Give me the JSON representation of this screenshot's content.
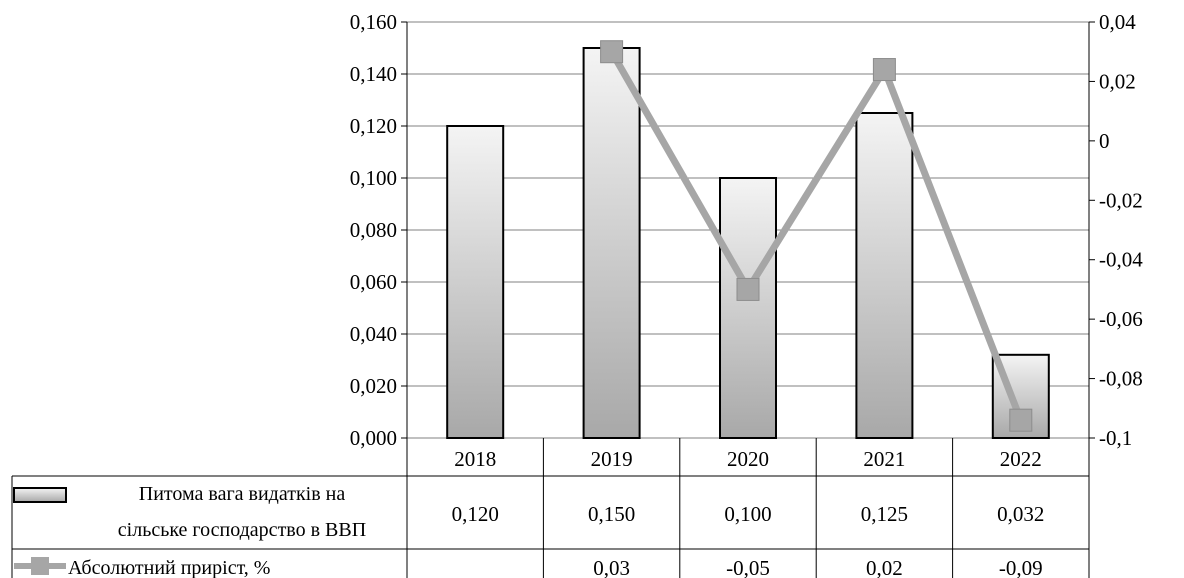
{
  "chart_data": {
    "type": "bar",
    "categories": [
      "2018",
      "2019",
      "2020",
      "2021",
      "2022"
    ],
    "series": [
      {
        "name": "Питома вага видатків на сільське господарство в ВВП",
        "name_lines": [
          "Питома вага видатків на",
          "сільське господарство в ВВП"
        ],
        "chart_type": "bar",
        "axis": "left",
        "values": [
          0.12,
          0.15,
          0.1,
          0.125,
          0.032
        ],
        "labels": [
          "0,120",
          "0,150",
          "0,100",
          "0,125",
          "0,032"
        ]
      },
      {
        "name": "Абсолютний приріст, %",
        "chart_type": "line",
        "axis": "right",
        "values": [
          null,
          0.03,
          -0.05,
          0.024,
          -0.094
        ],
        "labels": [
          "",
          "0,03",
          "-0,05",
          "0,02",
          "-0,09"
        ]
      }
    ],
    "y_left": {
      "range": [
        0,
        0.16
      ],
      "ticks": [
        0,
        0.02,
        0.04,
        0.06,
        0.08,
        0.1,
        0.12,
        0.14,
        0.16
      ],
      "tick_labels": [
        "0,000",
        "0,020",
        "0,040",
        "0,060",
        "0,080",
        "0,100",
        "0,120",
        "0,140",
        "0,160"
      ]
    },
    "y_right": {
      "range": [
        -0.1,
        0.04
      ],
      "ticks": [
        -0.1,
        -0.08,
        -0.06,
        -0.04,
        -0.02,
        0,
        0.02,
        0.04
      ],
      "tick_labels": [
        "-0,1",
        "-0,08",
        "-0,06",
        "-0,04",
        "-0,02",
        "0",
        "0,02",
        "0,04"
      ]
    },
    "grid": true,
    "legend": "data-table",
    "colors": {
      "bar_top": "#f4f4f4",
      "bar_bottom": "#a8a8a8",
      "bar_border": "#000000",
      "line": "#a6a6a6",
      "marker": "#a6a6a6",
      "grid": "#808080"
    }
  }
}
